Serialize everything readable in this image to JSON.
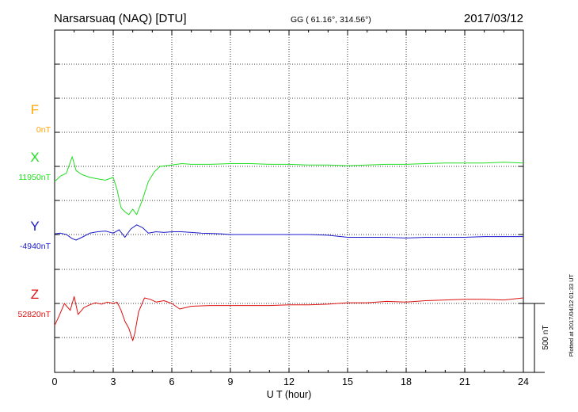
{
  "header": {
    "station": "Narsarsuaq (NAQ)  [DTU]",
    "coords": "GG ( 61.16°, 314.56°)",
    "date": "2017/03/12"
  },
  "side_note": "Plotted at 2017/04/12 01:33 UT",
  "scale_label": "500 nT",
  "chart_data": {
    "type": "line",
    "title": "Narsarsuaq (NAQ)  [DTU]",
    "xlabel": "U T (hour)",
    "ylabel": "",
    "xlim": [
      0,
      24
    ],
    "x_ticks": [
      "0",
      "3",
      "6",
      "9",
      "12",
      "15",
      "18",
      "21",
      "24"
    ],
    "grid": true,
    "scale_bar_nT": 500,
    "series": [
      {
        "name": "F",
        "baseline_label": "0nT",
        "color": "#ffa500",
        "baseline_nT": 0,
        "offset_nT": [],
        "x": []
      },
      {
        "name": "X",
        "baseline_label": "11950nT",
        "color": "#22dd22",
        "baseline_nT": 11950,
        "x": [
          0,
          0.3,
          0.6,
          0.9,
          1.1,
          1.4,
          1.8,
          2.2,
          2.6,
          3.0,
          3.2,
          3.4,
          3.6,
          3.8,
          4.0,
          4.2,
          4.5,
          4.8,
          5.1,
          5.4,
          6.0,
          6.5,
          7.0,
          8.0,
          9.0,
          10,
          11,
          12,
          13,
          14,
          15,
          16,
          17,
          18,
          19,
          20,
          21,
          22,
          23,
          24
        ],
        "offset_nT": [
          -110,
          -70,
          -50,
          70,
          -30,
          -60,
          -80,
          -90,
          -100,
          -80,
          -170,
          -300,
          -330,
          -350,
          -310,
          -350,
          -240,
          -110,
          -40,
          0,
          10,
          20,
          15,
          15,
          20,
          20,
          15,
          15,
          10,
          10,
          5,
          10,
          15,
          15,
          20,
          25,
          25,
          25,
          30,
          25
        ]
      },
      {
        "name": "Y",
        "baseline_label": "-4940nT",
        "color": "#1a1acc",
        "baseline_nT": -4940,
        "x": [
          0,
          0.3,
          0.6,
          0.9,
          1.1,
          1.4,
          1.8,
          2.2,
          2.6,
          3.0,
          3.3,
          3.6,
          3.9,
          4.2,
          4.5,
          4.8,
          5.2,
          5.6,
          6.0,
          6.5,
          7.5,
          8.5,
          9.0,
          10,
          11,
          12,
          13,
          14,
          15,
          16,
          17,
          18,
          19,
          20,
          21,
          22,
          23,
          24
        ],
        "offset_nT": [
          5,
          10,
          0,
          -30,
          -40,
          -20,
          10,
          20,
          25,
          10,
          35,
          -20,
          40,
          70,
          50,
          10,
          20,
          15,
          20,
          20,
          10,
          5,
          0,
          0,
          0,
          0,
          0,
          -5,
          -20,
          -20,
          -20,
          -25,
          -20,
          -20,
          -20,
          -15,
          -15,
          -15
        ]
      },
      {
        "name": "Z",
        "baseline_label": "52820nT",
        "color": "#dd1111",
        "baseline_nT": 52820,
        "x": [
          0,
          0.2,
          0.5,
          0.8,
          1.0,
          1.2,
          1.5,
          1.8,
          2.1,
          2.4,
          2.7,
          3.0,
          3.2,
          3.4,
          3.6,
          3.8,
          4.0,
          4.1,
          4.3,
          4.6,
          4.9,
          5.2,
          5.6,
          6.0,
          6.4,
          7.0,
          8.0,
          9.0,
          10,
          11,
          12,
          13,
          14,
          15,
          16,
          17,
          18,
          19,
          20,
          21,
          22,
          23,
          24
        ],
        "offset_nT": [
          -160,
          -100,
          0,
          -50,
          50,
          -80,
          -30,
          -10,
          5,
          -5,
          10,
          0,
          10,
          -50,
          -130,
          -180,
          -270,
          -220,
          -60,
          40,
          30,
          10,
          20,
          0,
          -40,
          -20,
          -15,
          -15,
          -15,
          -15,
          -10,
          -10,
          -5,
          5,
          5,
          15,
          10,
          20,
          25,
          30,
          30,
          25,
          40
        ]
      }
    ]
  }
}
